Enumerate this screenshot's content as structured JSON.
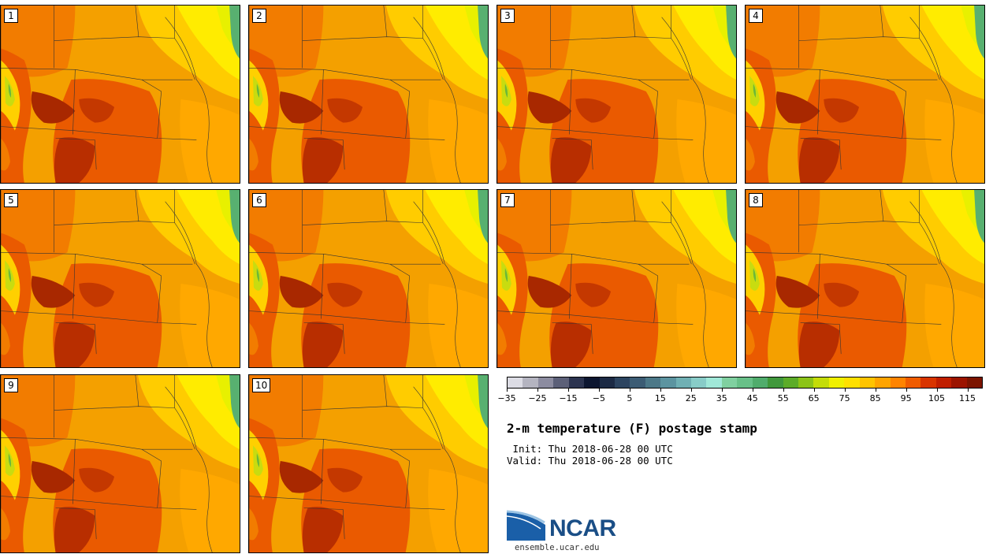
{
  "figure": {
    "title": "2-m temperature (F) postage stamp",
    "init": " Init: Thu 2018-06-28 00 UTC",
    "valid": "Valid: Thu 2018-06-28 00 UTC",
    "site": "ensemble.ucar.edu",
    "logo_text": "NCAR"
  },
  "members": [
    {
      "label": "1"
    },
    {
      "label": "2"
    },
    {
      "label": "3"
    },
    {
      "label": "4"
    },
    {
      "label": "5"
    },
    {
      "label": "6"
    },
    {
      "label": "7"
    },
    {
      "label": "8"
    },
    {
      "label": "9"
    },
    {
      "label": "10"
    }
  ],
  "colorbar": {
    "tick_labels": [
      "−35",
      "−25",
      "−15",
      "−5",
      "5",
      "15",
      "25",
      "35",
      "45",
      "55",
      "65",
      "75",
      "85",
      "95",
      "105",
      "115"
    ],
    "colors": [
      "#dcdce4",
      "#b4b4c0",
      "#8c8ca0",
      "#5c6078",
      "#2c3450",
      "#0c1630",
      "#1c2a44",
      "#2c4460",
      "#3c5c74",
      "#4c7888",
      "#5c94a0",
      "#70b0b4",
      "#88ccc8",
      "#a0e8d8",
      "#80d0a0",
      "#68c088",
      "#50ac6c",
      "#40983c",
      "#5cac28",
      "#8cc418",
      "#c4dc08",
      "#f0f000",
      "#ffe000",
      "#ffc400",
      "#ffa400",
      "#ff8400",
      "#f05c00",
      "#d83400",
      "#c01e00",
      "#9c1400",
      "#7c1400"
    ]
  }
}
